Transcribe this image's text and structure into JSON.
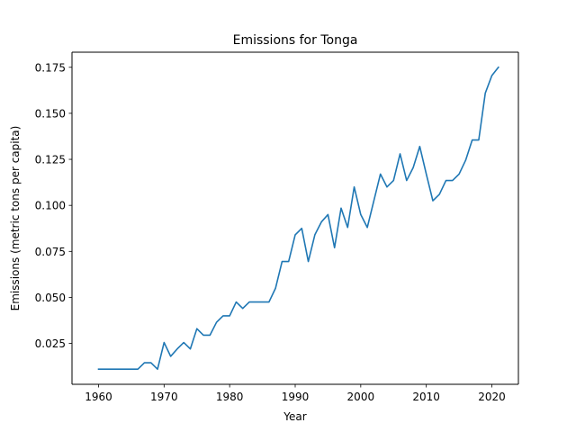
{
  "chart_data": {
    "type": "line",
    "title": "Emissions for Tonga",
    "xlabel": "Year",
    "ylabel": "Emissions (metric tons per capita)",
    "xlim": [
      1955.95,
      2024.05
    ],
    "ylim": [
      0.0028,
      0.1832
    ],
    "xticks": [
      1960,
      1970,
      1980,
      1990,
      2000,
      2010,
      2020
    ],
    "xtick_labels": [
      "1960",
      "1970",
      "1980",
      "1990",
      "2000",
      "2010",
      "2020"
    ],
    "yticks": [
      0.025,
      0.05,
      0.075,
      0.1,
      0.125,
      0.15,
      0.175
    ],
    "ytick_labels": [
      "0.025",
      "0.050",
      "0.075",
      "0.100",
      "0.125",
      "0.150",
      "0.175"
    ],
    "grid": false,
    "series": [
      {
        "color": "#1f77b4",
        "x": [
          1960,
          1961,
          1962,
          1963,
          1964,
          1965,
          1966,
          1967,
          1968,
          1969,
          1970,
          1971,
          1972,
          1973,
          1974,
          1975,
          1976,
          1977,
          1978,
          1979,
          1980,
          1981,
          1982,
          1983,
          1984,
          1985,
          1986,
          1987,
          1988,
          1989,
          1990,
          1991,
          1992,
          1993,
          1994,
          1995,
          1996,
          1997,
          1998,
          1999,
          2000,
          2001,
          2002,
          2003,
          2004,
          2005,
          2006,
          2007,
          2008,
          2009,
          2010,
          2011,
          2012,
          2013,
          2014,
          2015,
          2016,
          2017,
          2018,
          2019,
          2020,
          2021
        ],
        "y": [
          0.011,
          0.011,
          0.011,
          0.011,
          0.011,
          0.011,
          0.011,
          0.0145,
          0.0145,
          0.011,
          0.0255,
          0.018,
          0.022,
          0.0255,
          0.022,
          0.033,
          0.0295,
          0.0295,
          0.0365,
          0.04,
          0.04,
          0.0475,
          0.044,
          0.0475,
          0.0475,
          0.0475,
          0.0475,
          0.055,
          0.0695,
          0.0695,
          0.084,
          0.0875,
          0.0695,
          0.084,
          0.091,
          0.095,
          0.077,
          0.0985,
          0.088,
          0.11,
          0.095,
          0.088,
          0.1025,
          0.117,
          0.11,
          0.1135,
          0.128,
          0.1135,
          0.1205,
          0.132,
          0.117,
          0.1025,
          0.106,
          0.1135,
          0.1135,
          0.117,
          0.1245,
          0.1355,
          0.1355,
          0.161,
          0.1705,
          0.175
        ]
      }
    ]
  }
}
